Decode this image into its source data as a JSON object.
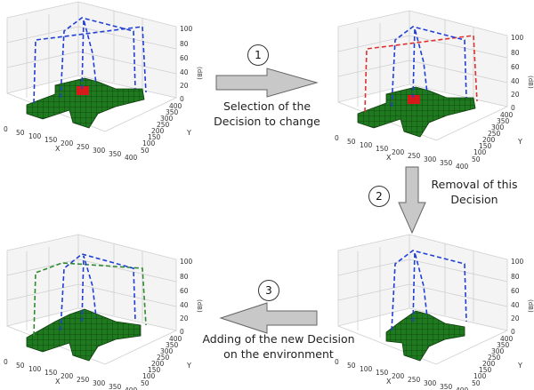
{
  "steps": [
    {
      "number": "1",
      "label_line1": "Selection of the",
      "label_line2": "Decision to change"
    },
    {
      "number": "2",
      "label_line1": "Removal of this",
      "label_line2": "Decision"
    },
    {
      "number": "3",
      "label_line1": "Adding of the new Decision",
      "label_line2": "on the environment"
    }
  ],
  "plots": [
    {
      "id": "top-left",
      "highlight": "selected-red",
      "lines": [
        "blue",
        "blue",
        "blue"
      ]
    },
    {
      "id": "top-right",
      "highlight": "selected-red",
      "lines": [
        "red",
        "blue",
        "blue"
      ]
    },
    {
      "id": "bottom-right",
      "highlight": "none",
      "lines": [
        "blue",
        "blue"
      ]
    },
    {
      "id": "bottom-left",
      "highlight": "none",
      "lines": [
        "green",
        "blue",
        "blue"
      ]
    }
  ],
  "axes": {
    "x_label": "X",
    "y_label": "Y",
    "z_label": "(dB)",
    "x_ticks": [
      "0",
      "50",
      "100",
      "150",
      "200",
      "250",
      "300",
      "350",
      "400"
    ],
    "y_ticks": [
      "50",
      "100",
      "150",
      "200",
      "250",
      "300",
      "350",
      "400"
    ],
    "z_ticks": [
      "0",
      "20",
      "40",
      "60",
      "80",
      "100"
    ]
  },
  "colors": {
    "voxel_green": "#1f7a1f",
    "voxel_edge": "#0d3b0d",
    "selected_red": "#d61a1a",
    "line_blue": "#1f3fd6",
    "line_red": "#e03030",
    "line_green": "#2e8b2e",
    "arrow_fill": "#c8c8c8",
    "arrow_edge": "#666666"
  }
}
